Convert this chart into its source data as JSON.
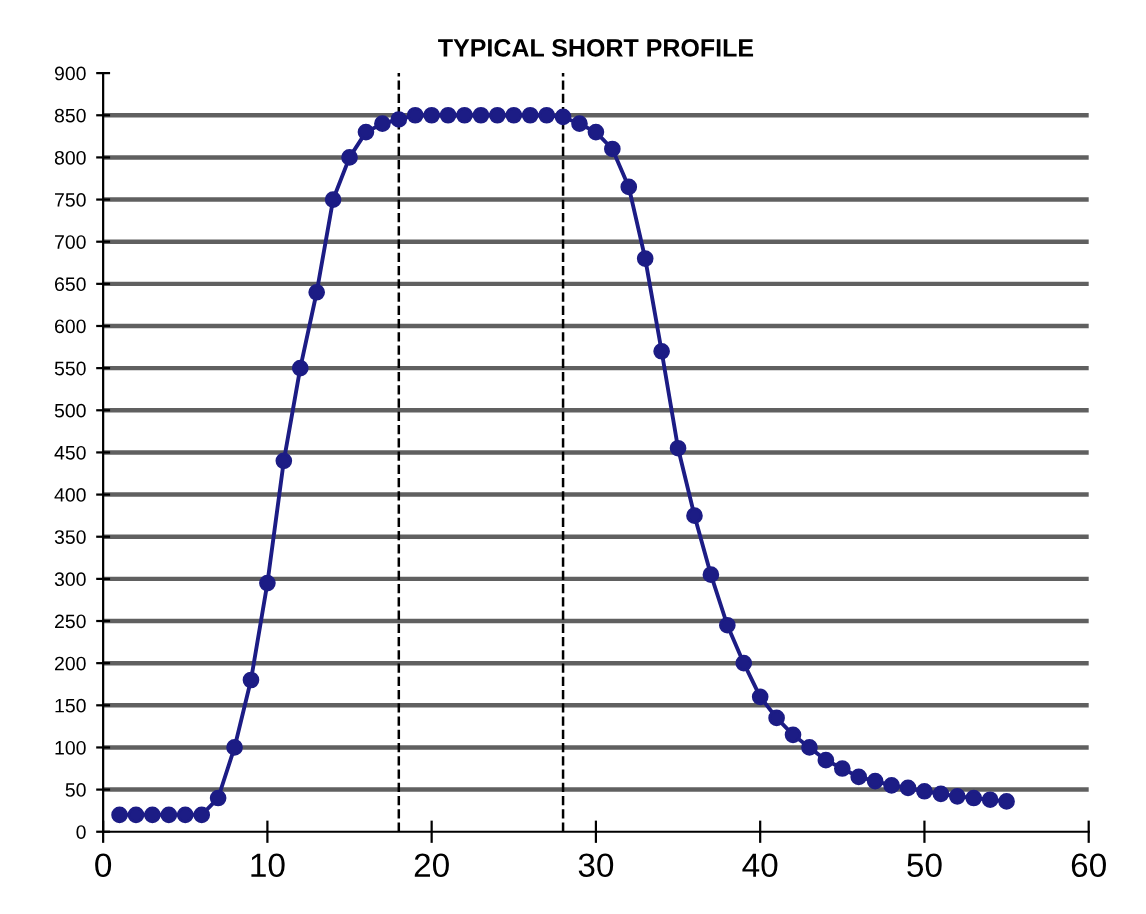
{
  "chart_data": {
    "type": "line",
    "title": "TYPICAL SHORT PROFILE",
    "x": [
      1,
      2,
      3,
      4,
      5,
      6,
      7,
      8,
      9,
      10,
      11,
      12,
      13,
      14,
      15,
      16,
      17,
      18,
      19,
      20,
      21,
      22,
      23,
      24,
      25,
      26,
      27,
      28,
      29,
      30,
      31,
      32,
      33,
      34,
      35,
      36,
      37,
      38,
      39,
      40,
      41,
      42,
      43,
      44,
      45,
      46,
      47,
      48,
      49,
      50,
      51,
      52,
      53,
      54,
      55
    ],
    "series": [
      {
        "color": "#1c1c85",
        "values": [
          20,
          20,
          20,
          20,
          20,
          20,
          40,
          100,
          180,
          295,
          440,
          550,
          640,
          750,
          800,
          830,
          840,
          845,
          850,
          850,
          850,
          850,
          850,
          850,
          850,
          850,
          850,
          848,
          840,
          830,
          810,
          765,
          680,
          570,
          455,
          375,
          305,
          245,
          200,
          160,
          135,
          115,
          100,
          85,
          75,
          65,
          60,
          55,
          52,
          48,
          45,
          42,
          40,
          38,
          36
        ]
      }
    ],
    "marker": "circle",
    "line_style": "solid",
    "xlim": [
      0,
      60
    ],
    "xticks": [
      0,
      10,
      20,
      30,
      40,
      50,
      60
    ],
    "ylim": [
      0,
      900
    ],
    "yticks": [
      0,
      50,
      100,
      150,
      200,
      250,
      300,
      350,
      400,
      450,
      500,
      550,
      600,
      650,
      700,
      750,
      800,
      850,
      900
    ],
    "grid": "y",
    "ref_lines": [
      {
        "axis": "x",
        "value": 18,
        "line_style": "dashed",
        "color": "#000000"
      },
      {
        "axis": "x",
        "value": 28,
        "line_style": "dashed",
        "color": "#000000"
      }
    ]
  }
}
